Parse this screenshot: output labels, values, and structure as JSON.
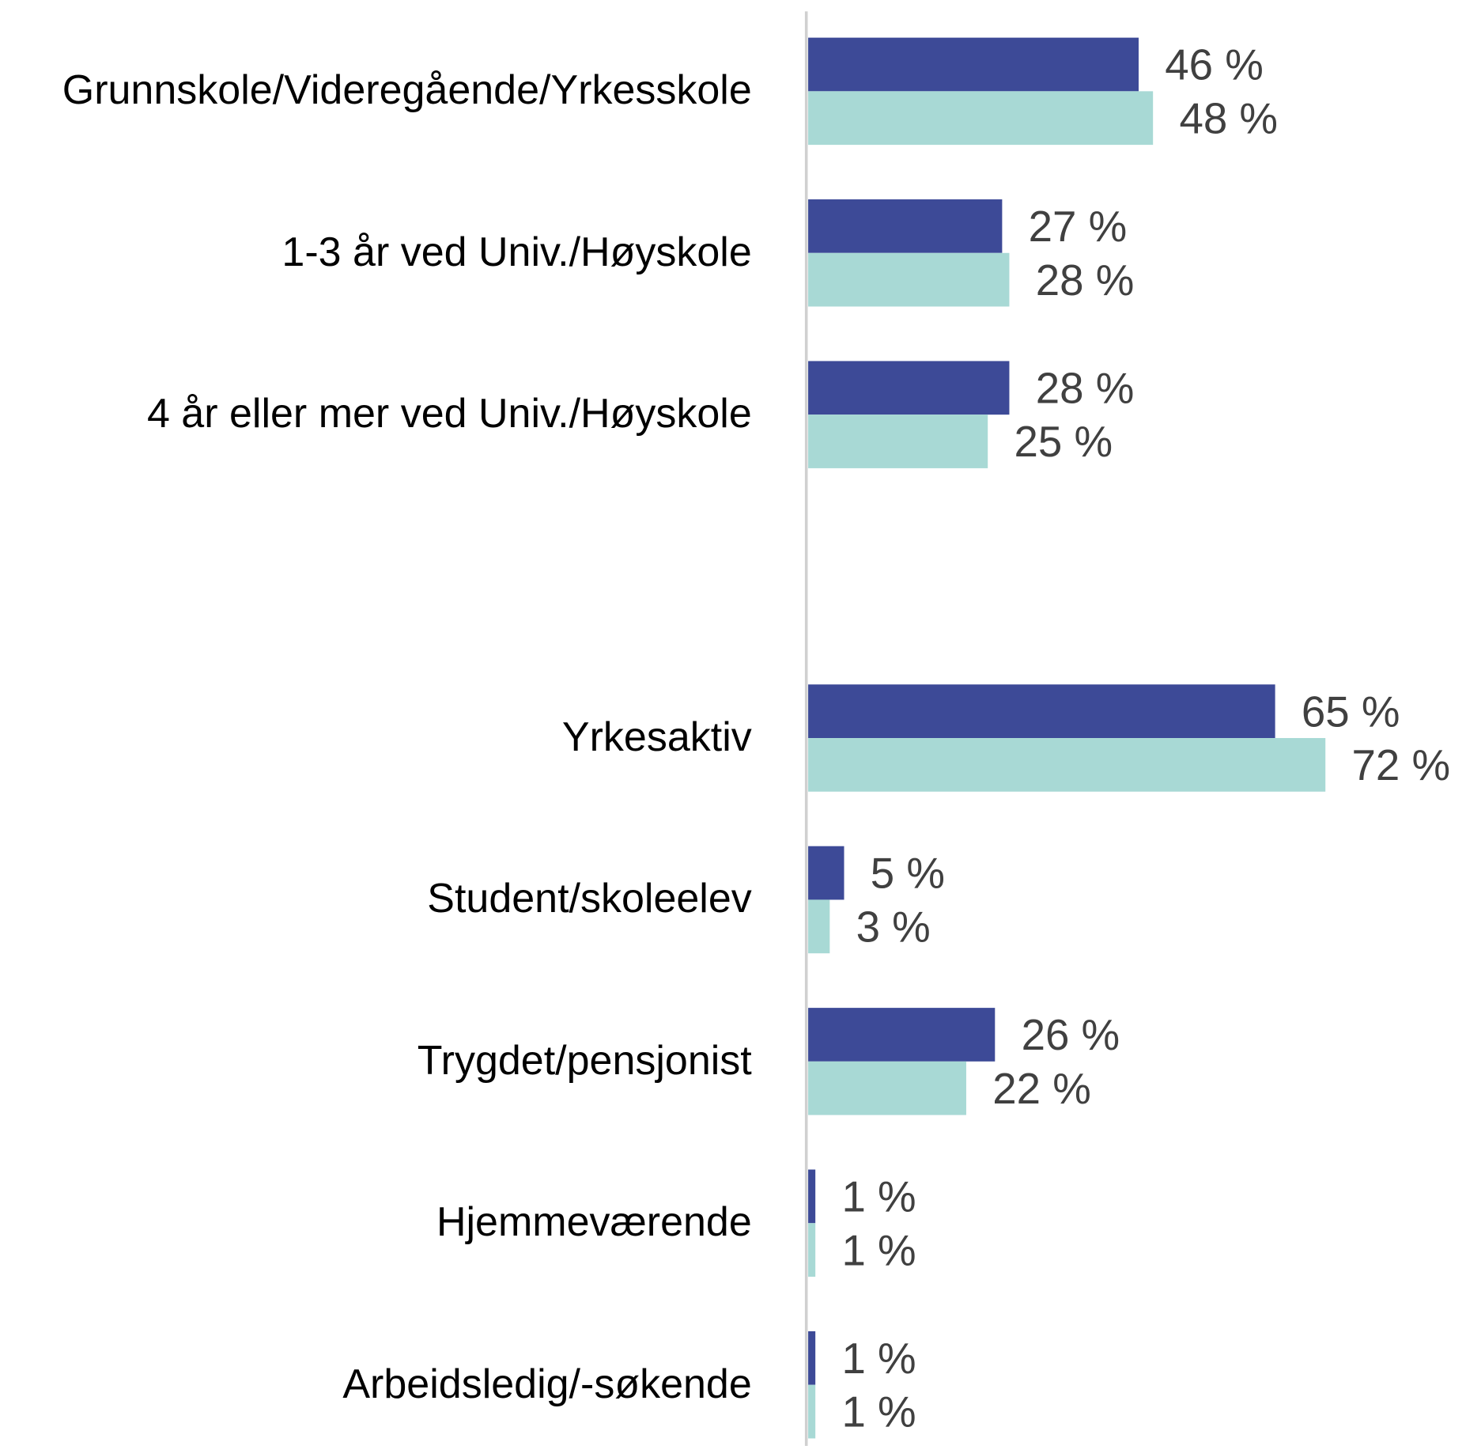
{
  "chart_data": {
    "type": "hbar",
    "categories": [
      "Grunnskole/Videregående/Yrkesskole",
      "1-3 år ved Univ./Høyskole",
      "4 år eller mer ved Univ./Høyskole",
      null,
      "Yrkesaktiv",
      "Student/skoleelev",
      "Trygdet/pensjonist",
      "Hjemmeværende",
      "Arbeidsledig/-søkende"
    ],
    "series": [
      {
        "color": "#3d4a97",
        "values": [
          46,
          27,
          28,
          null,
          65,
          5,
          26,
          1,
          1
        ],
        "value_labels": [
          "46 %",
          "27 %",
          "28 %",
          null,
          "65 %",
          "5 %",
          "26 %",
          "1 %",
          "1 %"
        ]
      },
      {
        "color": "#a8d9d5",
        "values": [
          48,
          28,
          25,
          null,
          72,
          3,
          22,
          1,
          1
        ],
        "value_labels": [
          "48 %",
          "28 %",
          "25 %",
          null,
          "72 %",
          "3 %",
          "22 %",
          "1 %",
          "1 %"
        ]
      }
    ],
    "xlim": [
      0,
      90
    ]
  }
}
